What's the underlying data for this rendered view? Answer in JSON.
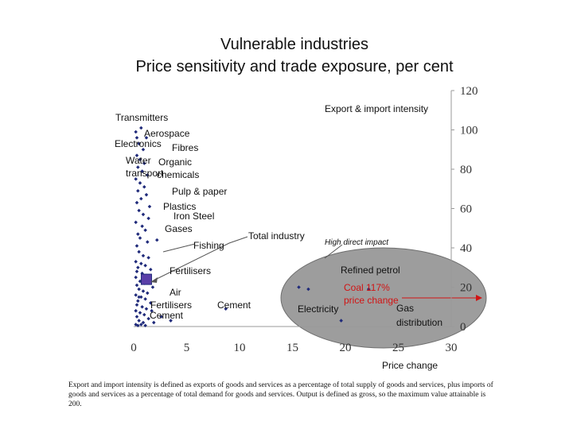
{
  "title_line1": "Vulnerable industries",
  "title_line2": "Price sensitivity and trade exposure, per cent",
  "xlabel": "Price change",
  "footnote": "Export and import intensity is defined as exports of goods and services as a percentage of total supply of goods and services, plus imports of goods and services as a percentage of total demand for goods and services. Output is defined as gross, so the maximum value attainable is 200.",
  "chart_data": {
    "type": "scatter",
    "title": "Vulnerable industries",
    "subtitle": "Price sensitivity and trade exposure, per cent",
    "xlabel": "Price change",
    "ylabel": "Export & import intensity",
    "xlim": [
      0,
      30
    ],
    "ylim": [
      0,
      120
    ],
    "x_ticks": [
      0,
      5,
      10,
      15,
      20,
      25,
      30
    ],
    "y_ticks": [
      0,
      20,
      40,
      60,
      80,
      100,
      120
    ],
    "y_axis_side": "right",
    "grid": false,
    "colors": {
      "points": "#1f2a7a",
      "highlight_fill": "#5a3fa8",
      "ellipse": "#9a9a9a",
      "red_text": "#d11414"
    },
    "points": [
      {
        "x": 0.2,
        "y": 99
      },
      {
        "x": 0.3,
        "y": 96
      },
      {
        "x": 0.7,
        "y": 101
      },
      {
        "x": 1.2,
        "y": 96
      },
      {
        "x": 0.5,
        "y": 93
      },
      {
        "x": 0.9,
        "y": 90
      },
      {
        "x": 0.3,
        "y": 87
      },
      {
        "x": 0.6,
        "y": 85
      },
      {
        "x": 1.0,
        "y": 83
      },
      {
        "x": 0.4,
        "y": 81
      },
      {
        "x": 0.8,
        "y": 79
      },
      {
        "x": 1.3,
        "y": 77
      },
      {
        "x": 0.2,
        "y": 75
      },
      {
        "x": 0.6,
        "y": 73
      },
      {
        "x": 1.0,
        "y": 71
      },
      {
        "x": 0.4,
        "y": 69
      },
      {
        "x": 1.2,
        "y": 67
      },
      {
        "x": 0.7,
        "y": 65
      },
      {
        "x": 0.3,
        "y": 63
      },
      {
        "x": 1.5,
        "y": 61
      },
      {
        "x": 0.5,
        "y": 59
      },
      {
        "x": 0.9,
        "y": 57
      },
      {
        "x": 1.4,
        "y": 55
      },
      {
        "x": 0.2,
        "y": 53
      },
      {
        "x": 0.8,
        "y": 51
      },
      {
        "x": 1.1,
        "y": 49
      },
      {
        "x": 0.4,
        "y": 47
      },
      {
        "x": 0.6,
        "y": 45
      },
      {
        "x": 1.3,
        "y": 43
      },
      {
        "x": 0.3,
        "y": 41
      },
      {
        "x": 2.2,
        "y": 44
      },
      {
        "x": 0.5,
        "y": 38
      },
      {
        "x": 0.9,
        "y": 36
      },
      {
        "x": 1.4,
        "y": 35
      },
      {
        "x": 0.2,
        "y": 33
      },
      {
        "x": 0.7,
        "y": 32
      },
      {
        "x": 1.1,
        "y": 31
      },
      {
        "x": 0.4,
        "y": 30
      },
      {
        "x": 1.6,
        "y": 29
      },
      {
        "x": 0.3,
        "y": 28
      },
      {
        "x": 0.8,
        "y": 27
      },
      {
        "x": 1.2,
        "y": 26
      },
      {
        "x": 0.2,
        "y": 25
      },
      {
        "x": 1.5,
        "y": 24
      },
      {
        "x": 0.6,
        "y": 23
      },
      {
        "x": 1.0,
        "y": 22
      },
      {
        "x": 0.3,
        "y": 21
      },
      {
        "x": 1.8,
        "y": 20
      },
      {
        "x": 0.5,
        "y": 19
      },
      {
        "x": 0.9,
        "y": 18
      },
      {
        "x": 1.3,
        "y": 17
      },
      {
        "x": 0.2,
        "y": 16
      },
      {
        "x": 0.7,
        "y": 15
      },
      {
        "x": 1.1,
        "y": 14
      },
      {
        "x": 0.4,
        "y": 13
      },
      {
        "x": 1.6,
        "y": 12
      },
      {
        "x": 0.3,
        "y": 11
      },
      {
        "x": 0.8,
        "y": 10
      },
      {
        "x": 1.2,
        "y": 9
      },
      {
        "x": 0.2,
        "y": 8
      },
      {
        "x": 0.6,
        "y": 7
      },
      {
        "x": 1.0,
        "y": 6
      },
      {
        "x": 0.3,
        "y": 5
      },
      {
        "x": 1.4,
        "y": 4
      },
      {
        "x": 0.5,
        "y": 3
      },
      {
        "x": 0.9,
        "y": 2
      },
      {
        "x": 0.2,
        "y": 1
      },
      {
        "x": 0.7,
        "y": 1
      },
      {
        "x": 0.4,
        "y": 0.5
      },
      {
        "x": 1.1,
        "y": 0.5
      },
      {
        "x": 0.5,
        "y": 15
      },
      {
        "x": 1.7,
        "y": 8
      },
      {
        "x": 2.6,
        "y": 5
      },
      {
        "x": 3.5,
        "y": 3
      },
      {
        "x": 1.9,
        "y": 2
      },
      {
        "x": 8.7,
        "y": 9
      },
      {
        "x": 15.6,
        "y": 20
      },
      {
        "x": 16.5,
        "y": 19
      },
      {
        "x": 19.6,
        "y": 3
      },
      {
        "x": 22.2,
        "y": 19
      }
    ],
    "highlight": {
      "label": "Total industry",
      "x": 1.2,
      "y": 24
    },
    "labels": [
      {
        "text": "Transmitters"
      },
      {
        "text": "Aerospace"
      },
      {
        "text": "Electronics"
      },
      {
        "text": "Fibres"
      },
      {
        "text": "Water"
      },
      {
        "text": "Organic"
      },
      {
        "text": "transport"
      },
      {
        "text": "chemicals"
      },
      {
        "text": "Pulp & paper"
      },
      {
        "text": "Plastics"
      },
      {
        "text": "Iron Steel"
      },
      {
        "text": "Gases"
      },
      {
        "text": "Fishing"
      },
      {
        "text": "Fertilisers"
      },
      {
        "text": "Air"
      },
      {
        "text": "Fertilisers"
      },
      {
        "text": "Cement"
      },
      {
        "text": "Cement"
      },
      {
        "text": "Total industry"
      },
      {
        "text": "Export & import intensity"
      }
    ],
    "high_impact": {
      "label": "High direct impact",
      "items": [
        "Refined petrol",
        "Coal 117%",
        "price change",
        "Electricity",
        "Gas",
        "distribution"
      ]
    }
  }
}
